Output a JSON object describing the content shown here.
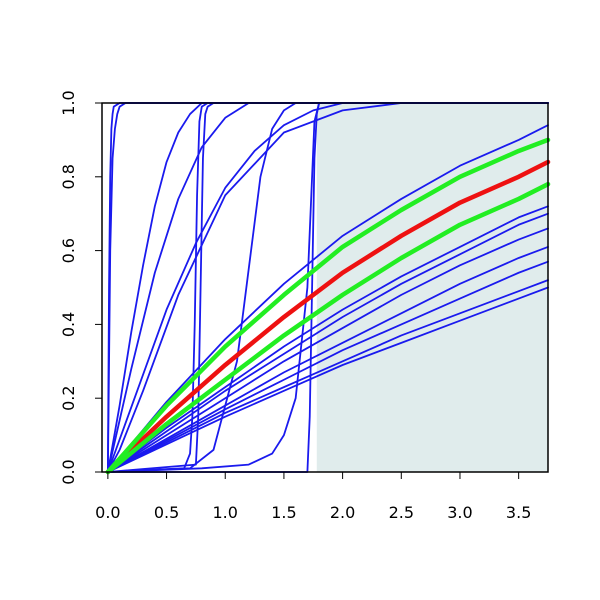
{
  "chart_data": {
    "type": "line",
    "title": "",
    "xlabel": "",
    "ylabel": "",
    "xlim": [
      -0.05,
      3.75
    ],
    "ylim": [
      0,
      1
    ],
    "x_ticks": [
      0.0,
      0.5,
      1.0,
      1.5,
      2.0,
      2.5,
      3.0,
      3.5
    ],
    "x_tick_labels": [
      "0.0",
      "0.5",
      "1.0",
      "1.5",
      "2.0",
      "2.5",
      "3.0",
      "3.5"
    ],
    "y_ticks": [
      0.0,
      0.2,
      0.4,
      0.6,
      0.8,
      1.0
    ],
    "y_tick_labels": [
      "0.0",
      "0.2",
      "0.4",
      "0.6",
      "0.8",
      "1.0"
    ],
    "grid": false,
    "shaded_region": {
      "x_from": 1.78,
      "x_to": 3.75,
      "color": "#e0ecec"
    },
    "colors": {
      "blue": "#1a1aee",
      "red": "#ee1111",
      "green": "#22ee22"
    },
    "series": [
      {
        "color": "blue",
        "x": [
          0,
          0.01,
          0.02,
          0.03,
          0.04,
          0.05,
          0.1,
          3.75
        ],
        "y": [
          0,
          0.5,
          0.8,
          0.93,
          0.97,
          0.99,
          1.0,
          1.0
        ]
      },
      {
        "color": "blue",
        "x": [
          0,
          0.02,
          0.04,
          0.06,
          0.08,
          0.1,
          0.15,
          3.75
        ],
        "y": [
          0,
          0.6,
          0.85,
          0.93,
          0.97,
          0.99,
          1.0,
          1.0
        ]
      },
      {
        "color": "blue",
        "x": [
          0,
          0.1,
          0.2,
          0.3,
          0.4,
          0.5,
          0.6,
          0.7,
          0.8,
          3.75
        ],
        "y": [
          0,
          0.18,
          0.38,
          0.56,
          0.72,
          0.84,
          0.92,
          0.97,
          1.0,
          1.0
        ]
      },
      {
        "color": "blue",
        "x": [
          0,
          0.2,
          0.4,
          0.6,
          0.8,
          1.0,
          1.2,
          3.75
        ],
        "y": [
          0,
          0.28,
          0.54,
          0.74,
          0.88,
          0.96,
          1.0,
          1.0
        ]
      },
      {
        "color": "blue",
        "x": [
          0,
          0.25,
          0.5,
          0.75,
          1.0,
          1.25,
          1.5,
          1.75,
          2.0,
          3.75
        ],
        "y": [
          0,
          0.22,
          0.44,
          0.62,
          0.77,
          0.87,
          0.94,
          0.98,
          1.0,
          1.0
        ]
      },
      {
        "color": "blue",
        "x": [
          0,
          0.1,
          0.3,
          0.6,
          1.0,
          1.5,
          2.0,
          2.5,
          3.0,
          3.75
        ],
        "y": [
          0,
          0.06,
          0.22,
          0.48,
          0.75,
          0.92,
          0.98,
          1.0,
          1.0,
          1.0
        ]
      },
      {
        "color": "blue",
        "x": [
          0,
          0.65,
          0.7,
          0.72,
          0.74,
          0.76,
          0.78,
          0.8,
          0.85,
          3.75
        ],
        "y": [
          0,
          0.01,
          0.05,
          0.15,
          0.4,
          0.75,
          0.95,
          0.99,
          1.0,
          1.0
        ]
      },
      {
        "color": "blue",
        "x": [
          0,
          0.75,
          0.77,
          0.79,
          0.81,
          0.83,
          0.85,
          0.9,
          3.75
        ],
        "y": [
          0,
          0.02,
          0.15,
          0.5,
          0.85,
          0.97,
          0.99,
          1.0,
          1.0
        ]
      },
      {
        "color": "blue",
        "x": [
          0,
          0.7,
          0.9,
          1.1,
          1.2,
          1.3,
          1.4,
          1.5,
          1.6,
          1.8,
          3.75
        ],
        "y": [
          0,
          0.01,
          0.06,
          0.3,
          0.55,
          0.8,
          0.93,
          0.98,
          1.0,
          1.0,
          1.0
        ]
      },
      {
        "color": "blue",
        "x": [
          0,
          0.8,
          1.2,
          1.4,
          1.5,
          1.6,
          1.7,
          1.74,
          1.76,
          1.8,
          3.75
        ],
        "y": [
          0,
          0.01,
          0.02,
          0.05,
          0.1,
          0.2,
          0.5,
          0.8,
          0.95,
          1.0,
          1.0
        ]
      },
      {
        "color": "blue",
        "x": [
          0,
          1.7,
          1.72,
          1.74,
          1.76,
          1.78,
          1.8,
          3.75
        ],
        "y": [
          0,
          0.0,
          0.15,
          0.5,
          0.85,
          0.97,
          1.0,
          1.0
        ]
      },
      {
        "color": "blue",
        "x": [
          0,
          0.5,
          1.0,
          1.5,
          2.0,
          2.5,
          3.0,
          3.5,
          3.75
        ],
        "y": [
          0,
          0.19,
          0.36,
          0.51,
          0.64,
          0.74,
          0.83,
          0.9,
          0.94
        ]
      },
      {
        "color": "blue",
        "x": [
          0,
          0.5,
          1.0,
          1.5,
          2.0,
          2.5,
          3.0,
          3.5,
          3.75
        ],
        "y": [
          0,
          0.12,
          0.23,
          0.34,
          0.44,
          0.53,
          0.61,
          0.69,
          0.72
        ]
      },
      {
        "color": "blue",
        "x": [
          0,
          0.5,
          1.0,
          1.5,
          2.0,
          2.5,
          3.0,
          3.5,
          3.75
        ],
        "y": [
          0,
          0.11,
          0.22,
          0.32,
          0.42,
          0.51,
          0.59,
          0.67,
          0.7
        ]
      },
      {
        "color": "blue",
        "x": [
          0,
          0.5,
          1.0,
          1.5,
          2.0,
          2.5,
          3.0,
          3.5,
          3.75
        ],
        "y": [
          0,
          0.1,
          0.2,
          0.3,
          0.39,
          0.48,
          0.56,
          0.63,
          0.66
        ]
      },
      {
        "color": "blue",
        "x": [
          0,
          0.5,
          1.0,
          1.5,
          2.0,
          2.5,
          3.0,
          3.5,
          3.75
        ],
        "y": [
          0,
          0.09,
          0.18,
          0.27,
          0.35,
          0.43,
          0.51,
          0.58,
          0.61
        ]
      },
      {
        "color": "blue",
        "x": [
          0,
          0.5,
          1.0,
          1.5,
          2.0,
          2.5,
          3.0,
          3.5,
          3.75
        ],
        "y": [
          0,
          0.085,
          0.17,
          0.25,
          0.33,
          0.4,
          0.47,
          0.54,
          0.57
        ]
      },
      {
        "color": "blue",
        "x": [
          0,
          0.5,
          1.0,
          1.5,
          2.0,
          2.5,
          3.0,
          3.5,
          3.75
        ],
        "y": [
          0,
          0.08,
          0.16,
          0.23,
          0.3,
          0.37,
          0.43,
          0.49,
          0.52
        ]
      },
      {
        "color": "blue",
        "x": [
          0,
          0.5,
          1.0,
          1.5,
          2.0,
          2.5,
          3.0,
          3.5,
          3.75
        ],
        "y": [
          0,
          0.075,
          0.15,
          0.22,
          0.29,
          0.35,
          0.41,
          0.47,
          0.5
        ]
      },
      {
        "color": "red",
        "x": [
          0,
          0.5,
          1.0,
          1.5,
          2.0,
          2.5,
          3.0,
          3.5,
          3.75
        ],
        "y": [
          0,
          0.15,
          0.29,
          0.42,
          0.54,
          0.64,
          0.73,
          0.8,
          0.84
        ]
      },
      {
        "color": "green",
        "x": [
          0,
          0.5,
          1.0,
          1.5,
          2.0,
          2.5,
          3.0,
          3.5,
          3.75
        ],
        "y": [
          0,
          0.18,
          0.34,
          0.48,
          0.61,
          0.71,
          0.8,
          0.87,
          0.9
        ]
      },
      {
        "color": "green",
        "x": [
          0,
          0.5,
          1.0,
          1.5,
          2.0,
          2.5,
          3.0,
          3.5,
          3.75
        ],
        "y": [
          0,
          0.13,
          0.25,
          0.37,
          0.48,
          0.58,
          0.67,
          0.74,
          0.78
        ]
      }
    ]
  }
}
